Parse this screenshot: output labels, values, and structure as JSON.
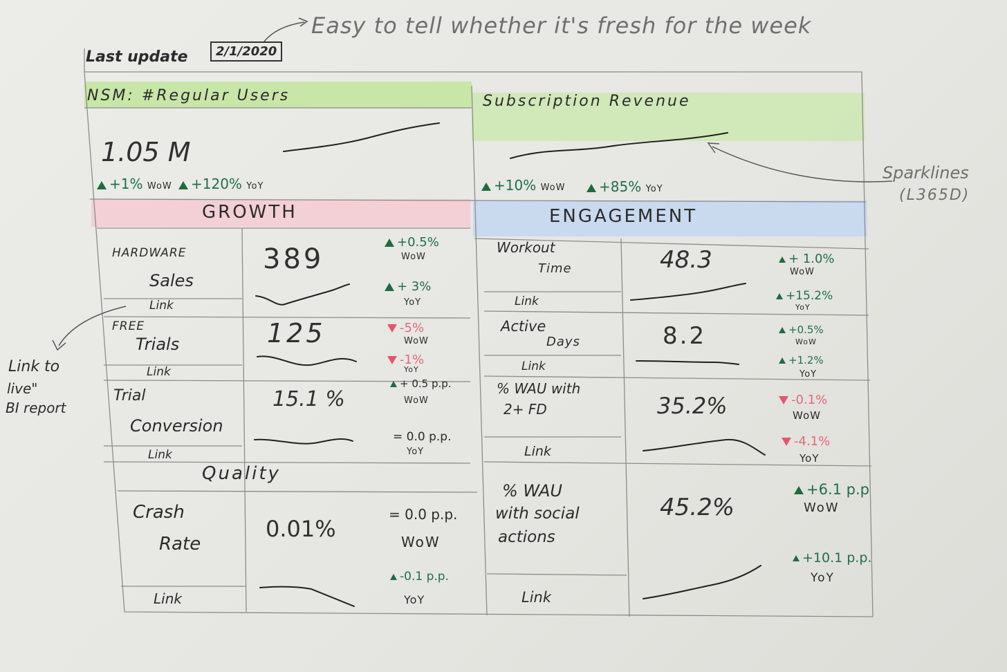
{
  "annotations": {
    "freshness_note": "Easy to tell whether it's fresh for the week",
    "sparklines_note_line1": "Sparklines",
    "sparklines_note_line2": "(L365D)",
    "link_note_line1": "Link to",
    "link_note_line2": "live\"",
    "link_note_line3": "BI report"
  },
  "header": {
    "last_update_label": "Last update",
    "last_update_value": "2/1/2020"
  },
  "top": {
    "nsm": {
      "title": "NSM: #Regular Users",
      "value": "1.05 M",
      "wow": "+1%",
      "wow_unit": "WoW",
      "yoy": "+120%",
      "yoy_unit": "YoY"
    },
    "revenue": {
      "title": "Subscription Revenue",
      "wow": "+10%",
      "wow_unit": "WoW",
      "yoy": "+85%",
      "yoy_unit": "YoY"
    }
  },
  "sections": {
    "growth": "GROWTH",
    "engagement": "ENGAGEMENT",
    "quality": "Quality"
  },
  "growth": [
    {
      "label1": "HARDWARE",
      "label2": "Sales",
      "value": "389",
      "wow": "+0.5%",
      "wow_unit": "WoW",
      "wow_dir": "up",
      "yoy": "+ 3%",
      "yoy_unit": "YoY",
      "yoy_dir": "up",
      "link": "Link"
    },
    {
      "label1": "FREE",
      "label2": "Trials",
      "value": "125",
      "wow": "-5%",
      "wow_unit": "WoW",
      "wow_dir": "down",
      "yoy": "-1%",
      "yoy_unit": "YoY",
      "yoy_dir": "down",
      "link": "Link"
    },
    {
      "label1": "Trial",
      "label2": "Conversion",
      "value": "15.1 %",
      "wow": "+ 0.5 p.p.",
      "wow_unit": "WoW",
      "wow_dir": "up",
      "yoy": "= 0.0 p.p.",
      "yoy_unit": "YoY",
      "yoy_dir": "flat",
      "link": "Link"
    }
  ],
  "quality": [
    {
      "label1": "Crash",
      "label2": "Rate",
      "value": "0.01%",
      "wow": "= 0.0 p.p.",
      "wow_unit": "WoW",
      "wow_dir": "flat",
      "yoy": "-0.1 p.p.",
      "yoy_unit": "YoY",
      "yoy_dir": "up",
      "link": "Link"
    }
  ],
  "engagement": [
    {
      "label1": "Workout",
      "label2": "Time",
      "value": "48.3",
      "wow": "+ 1.0%",
      "wow_unit": "WoW",
      "wow_dir": "up",
      "yoy": "+15.2%",
      "yoy_unit": "YoY",
      "yoy_dir": "up",
      "link": "Link"
    },
    {
      "label1": "Active",
      "label2": "Days",
      "value": "8.2",
      "wow": "+0.5%",
      "wow_unit": "WoW",
      "wow_dir": "up",
      "yoy": "+1.2%",
      "yoy_unit": "YoY",
      "yoy_dir": "up",
      "link": "Link"
    },
    {
      "label1": "% WAU with",
      "label2": "2+ FD",
      "value": "35.2%",
      "wow": "-0.1%",
      "wow_unit": "WoW",
      "wow_dir": "down",
      "yoy": "-4.1%",
      "yoy_unit": "YoY",
      "yoy_dir": "down",
      "link": "Link"
    },
    {
      "label1": "% WAU",
      "label2": "with social",
      "label3": "actions",
      "value": "45.2%",
      "wow": "+6.1 p.p",
      "wow_unit": "WoW",
      "wow_dir": "up",
      "yoy": "+10.1 p.p.",
      "yoy_unit": "YoY",
      "yoy_dir": "up",
      "link": "Link"
    }
  ],
  "colors": {
    "green_band": "#c8e6a8",
    "pink_band": "#f3cfd6",
    "blue_band": "#c9d9ee",
    "up": "#1d6f4a",
    "down": "#e06a78"
  }
}
